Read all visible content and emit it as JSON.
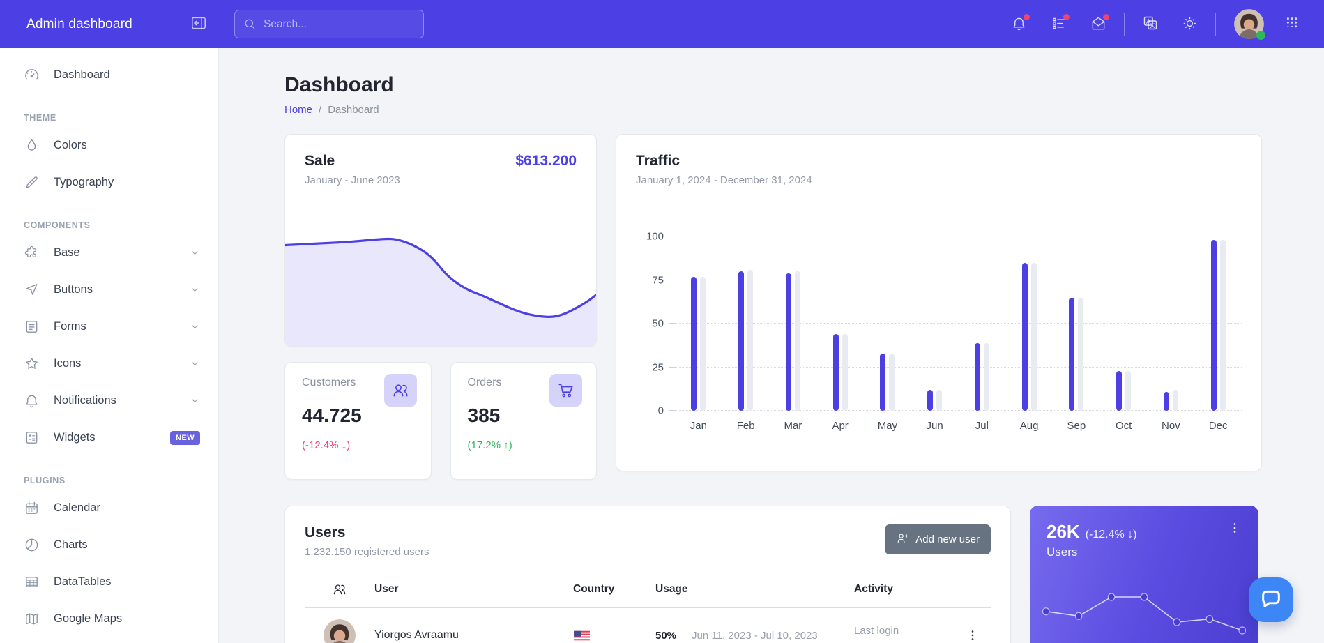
{
  "colors": {
    "accent": "#4c40e4",
    "header_bg": "#4c40e4",
    "notification_dot": "#f0426e",
    "danger_pink": "#e5437b",
    "success_green": "#2eb85c",
    "widget_gradient": [
      "#776bee",
      "#4a3ecf"
    ],
    "chat_blue": "#3d86f5",
    "page_bg": "#f3f4f7"
  },
  "header": {
    "brand": "Admin dashboard",
    "search_placeholder": "Search..."
  },
  "sidebar": {
    "sections": [
      {
        "title": "",
        "items": [
          {
            "label": "Dashboard",
            "icon": "speedometer"
          }
        ]
      },
      {
        "title": "THEME",
        "items": [
          {
            "label": "Colors",
            "icon": "drop"
          },
          {
            "label": "Typography",
            "icon": "pencil"
          }
        ]
      },
      {
        "title": "COMPONENTS",
        "items": [
          {
            "label": "Base",
            "icon": "puzzle",
            "chevron": true
          },
          {
            "label": "Buttons",
            "icon": "cursor",
            "chevron": true
          },
          {
            "label": "Forms",
            "icon": "notes",
            "chevron": true
          },
          {
            "label": "Icons",
            "icon": "star",
            "chevron": true
          },
          {
            "label": "Notifications",
            "icon": "bell",
            "chevron": true
          },
          {
            "label": "Widgets",
            "icon": "calculator",
            "badge": "NEW"
          }
        ]
      },
      {
        "title": "PLUGINS",
        "items": [
          {
            "label": "Calendar",
            "icon": "calendar"
          },
          {
            "label": "Charts",
            "icon": "chart-pie"
          },
          {
            "label": "DataTables",
            "icon": "table"
          },
          {
            "label": "Google Maps",
            "icon": "map"
          }
        ]
      }
    ]
  },
  "page": {
    "title": "Dashboard",
    "breadcrumb_home": "Home",
    "breadcrumb_sep": "/",
    "breadcrumb_current": "Dashboard"
  },
  "sale": {
    "title": "Sale",
    "amount": "$613.200",
    "period": "January - June 2023"
  },
  "traffic": {
    "title": "Traffic",
    "period": "January 1, 2024 - December 31, 2024"
  },
  "stats": {
    "customers": {
      "label": "Customers",
      "value": "44.725",
      "delta": "(-12.4% ↓)"
    },
    "orders": {
      "label": "Orders",
      "value": "385",
      "delta": "(17.2% ↑)"
    }
  },
  "users": {
    "title": "Users",
    "subtitle": "1.232.150 registered users",
    "add_button": "Add new user",
    "columns": {
      "user": "User",
      "country": "Country",
      "usage": "Usage",
      "activity": "Activity"
    },
    "rows": [
      {
        "name": "Yiorgos Avraamu",
        "country": "USA",
        "usage_pct": "50%",
        "usage_period": "Jun 11, 2023 - Jul 10, 2023",
        "activity_label": "Last login"
      }
    ]
  },
  "widget26k": {
    "value": "26K",
    "delta": "(-12.4% ↓)",
    "label": "Users"
  },
  "chart_data": [
    {
      "type": "bar",
      "title": "Traffic",
      "categories": [
        "Jan",
        "Feb",
        "Mar",
        "Apr",
        "May",
        "Jun",
        "Jul",
        "Aug",
        "Sep",
        "Oct",
        "Nov",
        "Dec"
      ],
      "series": [
        {
          "name": "primary",
          "color": "#4c40e4",
          "values": [
            77,
            80,
            79,
            44,
            33,
            12,
            39,
            85,
            65,
            23,
            11,
            98
          ]
        },
        {
          "name": "secondary",
          "color": "#e9ebf2",
          "values": [
            77,
            81,
            80,
            44,
            33,
            12,
            39,
            85,
            65,
            23,
            12,
            98
          ]
        }
      ],
      "ylim": [
        0,
        100
      ],
      "yticks": [
        0,
        25,
        50,
        75,
        100
      ],
      "grid": "horizontal-dotted",
      "legend": "none"
    },
    {
      "type": "area",
      "title": "Sale trend (no axes shown)",
      "color": "#4c40e4",
      "fill": "#e9e7fb",
      "points_pct": [
        [
          0,
          15
        ],
        [
          12,
          13.5
        ],
        [
          22,
          12
        ],
        [
          32,
          9.5
        ],
        [
          36,
          10
        ],
        [
          41,
          14.5
        ],
        [
          47,
          24
        ],
        [
          52,
          41
        ],
        [
          58,
          52
        ],
        [
          63,
          57
        ],
        [
          68,
          63
        ],
        [
          74,
          70
        ],
        [
          79,
          74
        ],
        [
          85,
          76
        ],
        [
          89,
          74
        ],
        [
          93,
          69
        ],
        [
          97,
          63
        ],
        [
          100,
          57
        ]
      ]
    },
    {
      "type": "line",
      "title": "26K Users sparkline",
      "color": "#ffffff",
      "point_fill": "#4a3ed0",
      "values": [
        65,
        59,
        84,
        84,
        51,
        55,
        40
      ]
    }
  ]
}
